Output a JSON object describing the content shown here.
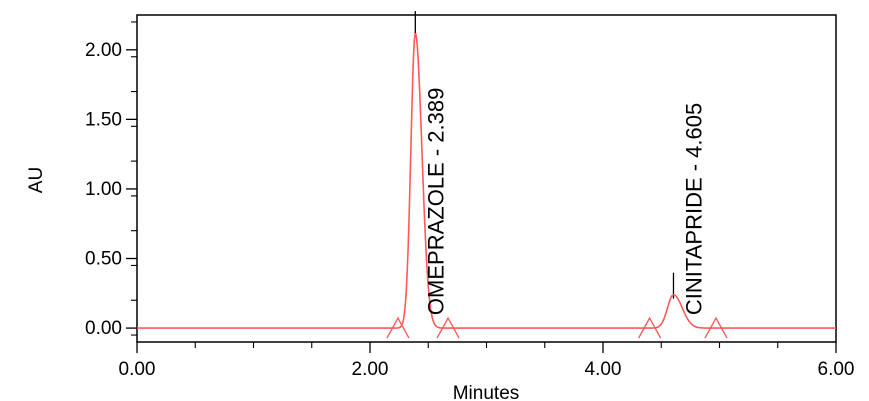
{
  "chart_data": {
    "type": "line",
    "xlabel": "Minutes",
    "ylabel": "AU",
    "xlim": [
      0,
      6
    ],
    "ylim": [
      -0.1,
      2.25
    ],
    "x_ticks": [
      {
        "value": 0,
        "label": "0.00"
      },
      {
        "value": 2,
        "label": "2.00"
      },
      {
        "value": 4,
        "label": "4.00"
      },
      {
        "value": 6,
        "label": "6.00"
      }
    ],
    "y_ticks": [
      {
        "value": 0,
        "label": "0.00"
      },
      {
        "value": 0.5,
        "label": "0.50"
      },
      {
        "value": 1.0,
        "label": "1.00"
      },
      {
        "value": 1.5,
        "label": "1.50"
      },
      {
        "value": 2.0,
        "label": "2.00"
      }
    ],
    "line_color": "#ff5a5a",
    "peaks": [
      {
        "label": "OMEPRAZOLE - 2.389",
        "retention_time": 2.389,
        "height": 2.12,
        "width_sigma": 0.045,
        "start": 2.24,
        "end": 2.67
      },
      {
        "label": "CINITAPRIDE - 4.605",
        "retention_time": 4.605,
        "height": 0.24,
        "width_sigma": 0.06,
        "start": 4.4,
        "end": 4.97
      }
    ]
  }
}
